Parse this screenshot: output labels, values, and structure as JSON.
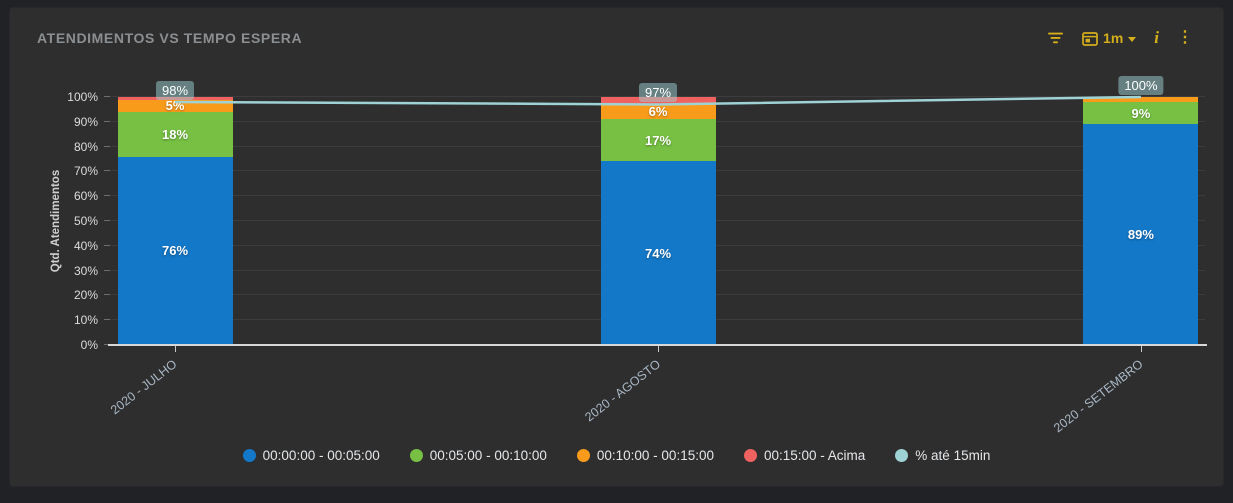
{
  "header": {
    "title": "ATENDIMENTOS VS TEMPO ESPERA",
    "controls": {
      "range_label": "1m",
      "menu_glyph": "⋮",
      "info_glyph": "i"
    }
  },
  "colors": {
    "accent_gold": "#d4ae1b",
    "card_bg": "#2e2e2e",
    "page_bg": "#202225",
    "axis_line": "#d6d8da"
  },
  "chart_data": {
    "type": "bar",
    "stacked": true,
    "title": "ATENDIMENTOS VS TEMPO ESPERA",
    "categories": [
      "2020 - JULHO",
      "2020 - AGOSTO",
      "2020 - SETEMBRO"
    ],
    "series": [
      {
        "name": "00:00:00 - 00:05:00",
        "type": "bar",
        "color": "#1478c8",
        "values": [
          76,
          74,
          89
        ],
        "data_labels": [
          "76%",
          "74%",
          "89%"
        ]
      },
      {
        "name": "00:05:00 - 00:10:00",
        "type": "bar",
        "color": "#77c044",
        "values": [
          18,
          17,
          9
        ],
        "data_labels": [
          "18%",
          "17%",
          "9%"
        ]
      },
      {
        "name": "00:10:00 - 00:15:00",
        "type": "bar",
        "color": "#f89b1b",
        "values": [
          5,
          6,
          2
        ],
        "data_labels": [
          "5%",
          "6%",
          ""
        ]
      },
      {
        "name": "00:15:00 - Acima",
        "type": "bar",
        "color": "#f0625f",
        "values": [
          1,
          3,
          0
        ],
        "data_labels": [
          "",
          "",
          ""
        ]
      },
      {
        "name": "% até 15min",
        "type": "line",
        "color": "#9ed2d4",
        "values": [
          98,
          97,
          100
        ],
        "data_labels": [
          "98%",
          "97%",
          "100%"
        ]
      }
    ],
    "xlabel": "",
    "ylabel": "Qtd. Atendimentos",
    "ylim": [
      0,
      100
    ],
    "yticks": [
      "0%",
      "10%",
      "20%",
      "30%",
      "40%",
      "50%",
      "60%",
      "70%",
      "80%",
      "90%",
      "100%"
    ],
    "grid": true,
    "legend_position": "bottom"
  }
}
